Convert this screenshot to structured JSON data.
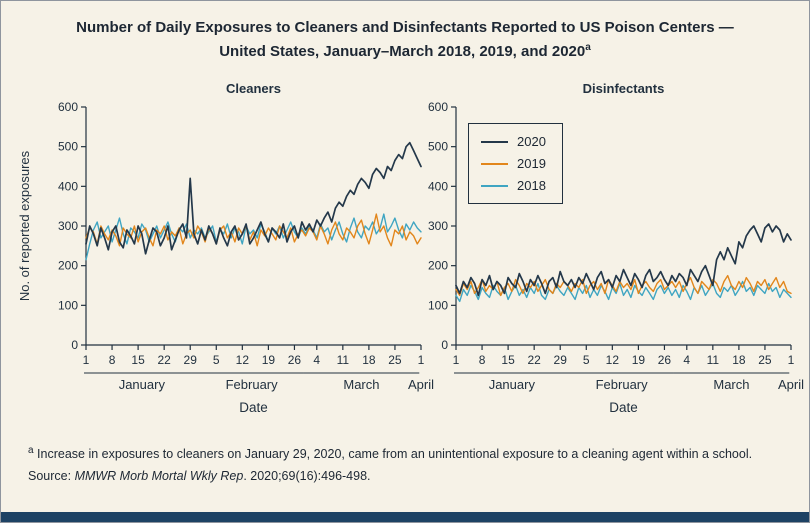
{
  "figure": {
    "title": "Number of Daily Exposures to Cleaners and Disinfectants Reported to US Poison Centers — United States, January–March 2018, 2019, and 2020",
    "title_superscript": "a",
    "footnote_superscript": "a",
    "footnote": "Increase in exposures to cleaners on January 29, 2020, came from an unintentional exposure to a cleaning agent within a school.",
    "source_prefix": "Source: ",
    "source_journal": "MMWR Morb Mortal Wkly Rep",
    "source_suffix": ". 2020;69(16):496-498."
  },
  "chart_data": {
    "type": "line",
    "x_unit": "day index from January 1",
    "x_range": [
      0,
      90
    ],
    "ylim": [
      0,
      600
    ],
    "yticks": [
      0,
      100,
      200,
      300,
      400,
      500,
      600
    ],
    "ylabel": "No. of reported exposures",
    "xlabel": "Date",
    "grid": false,
    "legend_position": "top-left of Disinfectants panel",
    "x_ticks": [
      {
        "day": 0,
        "label": "1"
      },
      {
        "day": 7,
        "label": "8"
      },
      {
        "day": 14,
        "label": "15"
      },
      {
        "day": 21,
        "label": "22"
      },
      {
        "day": 28,
        "label": "29"
      },
      {
        "day": 35,
        "label": "5"
      },
      {
        "day": 42,
        "label": "12"
      },
      {
        "day": 49,
        "label": "19"
      },
      {
        "day": 56,
        "label": "26"
      },
      {
        "day": 62,
        "label": "4"
      },
      {
        "day": 69,
        "label": "11"
      },
      {
        "day": 76,
        "label": "18"
      },
      {
        "day": 83,
        "label": "25"
      },
      {
        "day": 90,
        "label": "1"
      }
    ],
    "months": [
      {
        "label": "January",
        "start_day": 0,
        "end_day": 30
      },
      {
        "label": "February",
        "start_day": 31,
        "end_day": 58
      },
      {
        "label": "March",
        "start_day": 59,
        "end_day": 89
      },
      {
        "label": "April",
        "start_day": 90,
        "end_day": 90
      }
    ],
    "legend": [
      {
        "label": "2020",
        "color": "#24384a"
      },
      {
        "label": "2019",
        "color": "#e2861b"
      },
      {
        "label": "2018",
        "color": "#3fa5c2"
      }
    ],
    "panels": [
      {
        "title": "Cleaners",
        "series": [
          {
            "name": "2020",
            "values": [
              255,
              300,
              280,
              250,
              295,
              270,
              240,
              285,
              300,
              260,
              245,
              290,
              275,
              255,
              300,
              280,
              230,
              265,
              295,
              285,
              250,
              270,
              300,
              240,
              265,
              290,
              305,
              270,
              420,
              280,
              255,
              290,
              265,
              300,
              280,
              255,
              295,
              270,
              250,
              285,
              300,
              265,
              280,
              305,
              255,
              270,
              290,
              310,
              280,
              260,
              295,
              285,
              270,
              305,
              260,
              285,
              300,
              270,
              310,
              290,
              305,
              285,
              315,
              300,
              320,
              335,
              310,
              345,
              360,
              350,
              375,
              390,
              380,
              405,
              420,
              410,
              395,
              430,
              445,
              435,
              420,
              450,
              440,
              465,
              480,
              470,
              500,
              510,
              490,
              470,
              450
            ]
          },
          {
            "name": "2019",
            "values": [
              270,
              295,
              285,
              255,
              300,
              280,
              265,
              290,
              275,
              250,
              295,
              280,
              270,
              300,
              260,
              285,
              295,
              270,
              250,
              290,
              280,
              300,
              265,
              285,
              275,
              295,
              255,
              280,
              290,
              270,
              300,
              285,
              260,
              295,
              280,
              255,
              290,
              300,
              270,
              285,
              260,
              295,
              280,
              300,
              265,
              285,
              250,
              290,
              275,
              295,
              280,
              265,
              300,
              285,
              270,
              295,
              260,
              280,
              290,
              275,
              295,
              285,
              265,
              300,
              280,
              255,
              290,
              310,
              280,
              265,
              295,
              285,
              270,
              300,
              315,
              280,
              255,
              290,
              330,
              285,
              300,
              270,
              250,
              290,
              280,
              300,
              265,
              285,
              275,
              255,
              270
            ]
          },
          {
            "name": "2018",
            "values": [
              215,
              255,
              290,
              310,
              270,
              285,
              300,
              260,
              290,
              320,
              280,
              255,
              295,
              285,
              270,
              305,
              290,
              260,
              280,
              300,
              270,
              290,
              310,
              280,
              260,
              295,
              285,
              305,
              270,
              290,
              280,
              295,
              270,
              285,
              300,
              260,
              290,
              280,
              305,
              270,
              295,
              285,
              255,
              300,
              280,
              290,
              270,
              305,
              285,
              260,
              295,
              280,
              300,
              270,
              290,
              310,
              285,
              270,
              295,
              280,
              300,
              290,
              270,
              305,
              285,
              295,
              265,
              290,
              310,
              280,
              260,
              295,
              320,
              285,
              270,
              300,
              290,
              310,
              280,
              295,
              330,
              285,
              300,
              320,
              290,
              270,
              305,
              290,
              310,
              295,
              285
            ]
          }
        ]
      },
      {
        "title": "Disinfectants",
        "series": [
          {
            "name": "2020",
            "values": [
              150,
              130,
              160,
              145,
              170,
              155,
              125,
              165,
              150,
              175,
              140,
              160,
              150,
              130,
              170,
              155,
              145,
              180,
              160,
              135,
              165,
              150,
              175,
              155,
              130,
              160,
              170,
              145,
              185,
              160,
              150,
              165,
              145,
              170,
              155,
              180,
              160,
              140,
              170,
              185,
              155,
              165,
              145,
              175,
              160,
              190,
              170,
              150,
              180,
              165,
              145,
              175,
              190,
              160,
              170,
              185,
              165,
              150,
              175,
              160,
              180,
              170,
              150,
              190,
              175,
              160,
              185,
              200,
              175,
              150,
              215,
              235,
              215,
              245,
              225,
              205,
              260,
              245,
              275,
              290,
              300,
              280,
              260,
              295,
              305,
              285,
              300,
              290,
              260,
              280,
              265
            ]
          },
          {
            "name": "2019",
            "values": [
              140,
              125,
              155,
              140,
              160,
              130,
              145,
              165,
              135,
              150,
              140,
              160,
              125,
              145,
              155,
              135,
              165,
              150,
              130,
              155,
              145,
              160,
              135,
              150,
              165,
              140,
              130,
              155,
              145,
              160,
              150,
              135,
              155,
              145,
              165,
              130,
              150,
              160,
              140,
              155,
              130,
              165,
              150,
              135,
              160,
              145,
              155,
              140,
              165,
              130,
              150,
              160,
              145,
              135,
              155,
              165,
              140,
              150,
              160,
              145,
              160,
              135,
              155,
              170,
              145,
              130,
              160,
              150,
              140,
              165,
              155,
              135,
              160,
              175,
              150,
              140,
              160,
              145,
              170,
              155,
              135,
              160,
              150,
              165,
              140,
              155,
              170,
              145,
              160,
              135,
              130
            ]
          },
          {
            "name": "2018",
            "values": [
              125,
              110,
              140,
              125,
              150,
              135,
              115,
              145,
              130,
              120,
              150,
              135,
              125,
              145,
              115,
              135,
              150,
              125,
              140,
              120,
              145,
              130,
              155,
              125,
              115,
              140,
              130,
              150,
              135,
              125,
              145,
              130,
              115,
              145,
              130,
              150,
              120,
              140,
              125,
              150,
              135,
              115,
              145,
              130,
              155,
              125,
              140,
              120,
              150,
              135,
              125,
              145,
              130,
              115,
              140,
              150,
              130,
              145,
              125,
              140,
              120,
              150,
              135,
              115,
              145,
              130,
              150,
              125,
              140,
              155,
              130,
              120,
              145,
              135,
              150,
              125,
              140,
              160,
              135,
              145,
              125,
              150,
              140,
              130,
              155,
              135,
              145,
              120,
              140,
              130,
              120
            ]
          }
        ]
      }
    ]
  }
}
